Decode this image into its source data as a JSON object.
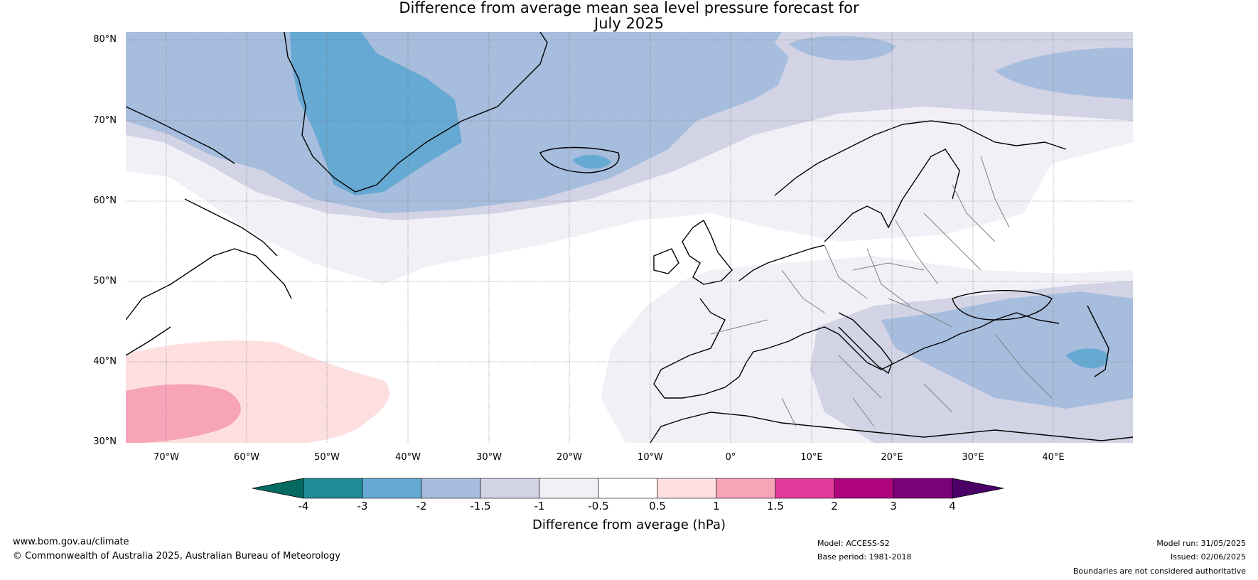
{
  "title_line1": "Difference from average mean sea level pressure forecast for",
  "title_line2": "July 2025",
  "lat_labels": [
    "80°N",
    "70°N",
    "60°N",
    "50°N",
    "40°N",
    "30°N"
  ],
  "lon_labels": [
    "70°W",
    "60°W",
    "50°W",
    "40°W",
    "30°W",
    "20°W",
    "10°W",
    "0°",
    "10°E",
    "20°E",
    "30°E",
    "40°E"
  ],
  "colorbar": {
    "title": "Difference from average (hPa)",
    "tick_labels": [
      "-4",
      "-3",
      "-2",
      "-1.5",
      "-1",
      "-0.5",
      "0.5",
      "1",
      "1.5",
      "2",
      "3",
      "4"
    ],
    "colors": [
      "#1e8c94",
      "#66a9d2",
      "#a7bddd",
      "#d2d4e6",
      "#f3eff7",
      "#ffffff",
      "#fddfe0",
      "#f7a3b8",
      "#e03a9b",
      "#ad047e",
      "#7a0179"
    ],
    "under_color": "#046b62",
    "over_color": "#4b0068"
  },
  "footer": {
    "website": "www.bom.gov.au/climate",
    "copyright": "© Commonwealth of Australia 2025, Australian Bureau of Meteorology",
    "model": "Model: ACCESS-S2",
    "base_period": "Base period: 1981-2018",
    "model_run": "Model run: 31/05/2025",
    "issued": "Issued: 02/06/2025",
    "disclaimer": "Boundaries are not considered authoritative"
  }
}
